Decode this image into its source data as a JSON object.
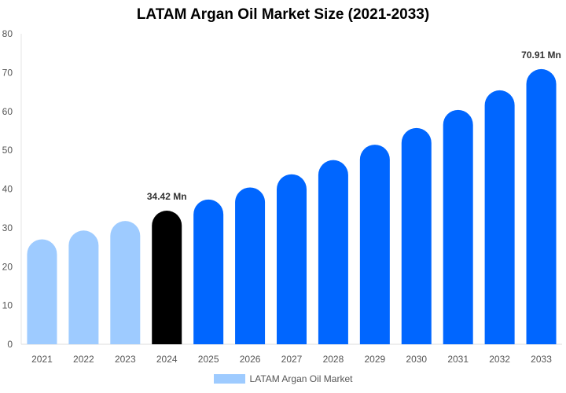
{
  "chart_data": {
    "type": "bar",
    "title": "LATAM Argan Oil Market Size (2021-2033)",
    "categories": [
      "2021",
      "2022",
      "2023",
      "2024",
      "2025",
      "2026",
      "2027",
      "2028",
      "2029",
      "2030",
      "2031",
      "2032",
      "2033"
    ],
    "series": [
      {
        "name": "LATAM Argan Oil Market",
        "values": [
          27.05,
          29.31,
          31.76,
          34.42,
          37.3,
          40.42,
          43.8,
          47.46,
          51.43,
          55.73,
          60.39,
          65.44,
          70.91
        ]
      }
    ],
    "data_labels": {
      "3": "34.42 Mn",
      "12": "70.91 Mn"
    },
    "ylim": [
      0,
      80
    ],
    "yticks": [
      0,
      10,
      20,
      30,
      40,
      50,
      60,
      70,
      80
    ],
    "grid": false,
    "legend": "bottom",
    "colors": {
      "historical": "#9ecbff",
      "base_year": "#000000",
      "forecast": "#0066ff"
    },
    "bar_color_index": [
      "historical",
      "historical",
      "historical",
      "base_year",
      "forecast",
      "forecast",
      "forecast",
      "forecast",
      "forecast",
      "forecast",
      "forecast",
      "forecast",
      "forecast"
    ]
  }
}
